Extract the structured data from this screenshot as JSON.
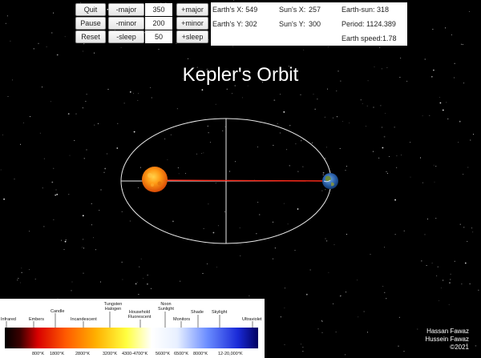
{
  "controls": {
    "quit_label": "Quit",
    "pause_label": "Pause",
    "reset_label": "Reset",
    "minus_major_label": "-major",
    "minus_minor_label": "-minor",
    "minus_sleep_label": "-sleep",
    "major_value": "350",
    "minor_value": "200",
    "sleep_value": "50",
    "plus_major_label": "+major",
    "plus_minor_label": "+minor",
    "plus_sleep_label": "+sleep"
  },
  "info": {
    "earth_x": "Earth's X: 549",
    "earth_y": "Earth's Y: 302",
    "sun_x": "Sun's X:",
    "sun_x_value": "257",
    "sun_y": "Sun's Y:",
    "sun_y_value": "300",
    "earth_sun": "Earth-sun: 318",
    "period": "Period: 1124.389",
    "earth_speed": "Earth speed:1.78"
  },
  "title": "Kepler's Orbit",
  "credits": [
    "Hassan Fawaz",
    "Hussein Fawaz",
    "©2021"
  ],
  "spectrum": {
    "top_labels": [
      "Infrared",
      "Embers",
      "Candle",
      "Incandescent",
      "Tungsten Halogen",
      "Household Fluorescent",
      "Noon Sunlight",
      "Monitors",
      "Shade",
      "Skylight",
      "Ultraviolet"
    ],
    "temps": [
      "800°K",
      "1800°K",
      "2800°K",
      "3200°K",
      "4300-4700°K",
      "5600°K",
      "6500°K",
      "8000°K",
      "12-20,000°K"
    ]
  },
  "colors": {
    "background": "#000000",
    "orbit": "#e8e8e8",
    "sun_earth_line": "#ff2a1a",
    "sun": "#ff8a10"
  }
}
